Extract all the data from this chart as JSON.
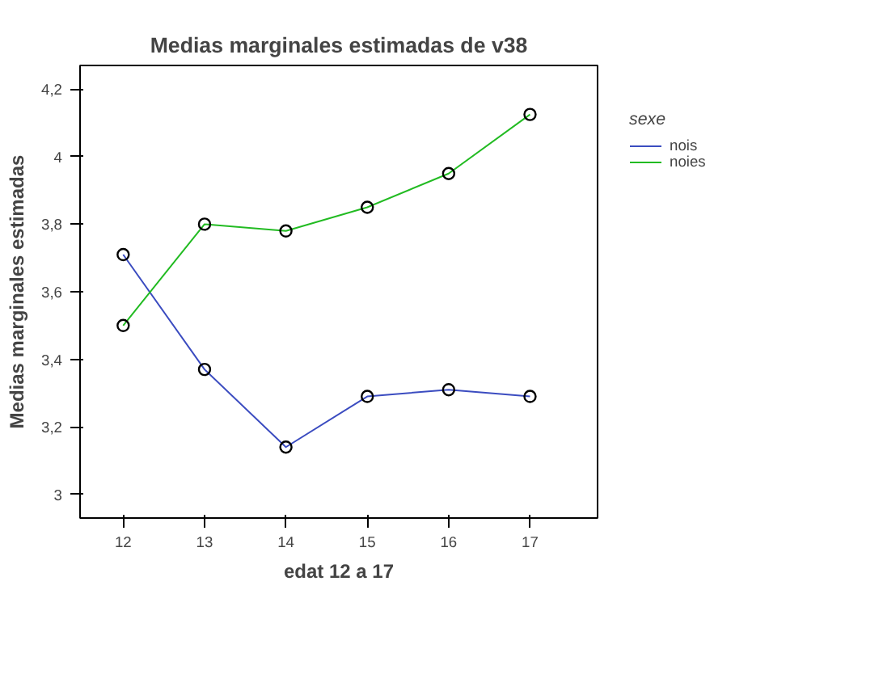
{
  "chart_data": {
    "type": "line",
    "title": "Medias marginales estimadas de v38",
    "xlabel": "edat 12 a 17",
    "ylabel": "Medias marginales estimadas",
    "legend_title": "sexe",
    "x": [
      12,
      13,
      14,
      15,
      16,
      17
    ],
    "series": [
      {
        "name": "nois",
        "color": "#3b4cc0",
        "values": [
          3.71,
          3.37,
          3.14,
          3.29,
          3.31,
          3.29
        ]
      },
      {
        "name": "noies",
        "color": "#22bb22",
        "values": [
          3.5,
          3.8,
          3.78,
          3.85,
          3.95,
          4.125
        ]
      }
    ],
    "xlim": [
      11.47,
      17.83
    ],
    "ylim": [
      2.93,
      4.27
    ],
    "xticks": [
      12,
      13,
      14,
      15,
      16,
      17
    ],
    "yticks": [
      {
        "value": 3,
        "label": "3"
      },
      {
        "value": 3.2,
        "label": "3,2"
      },
      {
        "value": 3.4,
        "label": "3,4"
      },
      {
        "value": 3.6,
        "label": "3,6"
      },
      {
        "value": 3.8,
        "label": "3,8"
      },
      {
        "value": 4,
        "label": "4"
      },
      {
        "value": 4.2,
        "label": "4,2"
      }
    ],
    "grid": false,
    "legend": "top right",
    "marker": "circle",
    "line_style": "solid"
  }
}
